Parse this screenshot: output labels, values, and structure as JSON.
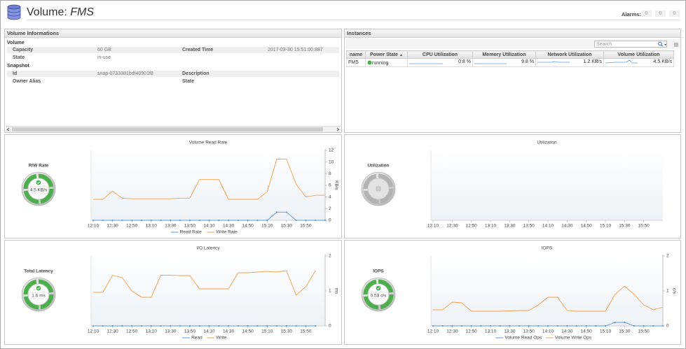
{
  "header": {
    "title_prefix": "Volume:",
    "title_name": "FMS",
    "alarms_label": "Alarms:",
    "alarm_counts": [
      0,
      0,
      0
    ]
  },
  "volume_info": {
    "title": "Volume Informations",
    "sections": [
      {
        "name": "Volume",
        "rows": [
          [
            {
              "label": "Capacity",
              "value": "60 GB"
            },
            {
              "label": "Created Time",
              "value": "2017-03-30 15:51:00.887"
            }
          ],
          [
            {
              "label": "State",
              "value": "in-use"
            }
          ]
        ]
      },
      {
        "name": "Snapshot",
        "rows": [
          [
            {
              "label": "Id",
              "value": "snap-0733381bdf40901f8"
            },
            {
              "label": "Description"
            }
          ],
          [
            {
              "label": "Owner Alias"
            },
            {
              "label": "State"
            }
          ]
        ]
      }
    ]
  },
  "instances": {
    "title": "Instances",
    "search_placeholder": "Search",
    "columns": [
      "name",
      "Power State",
      "CPU Utilization",
      "Memory Utilization",
      "Network Utilization",
      "Volume Utilization"
    ],
    "rows": [
      [
        "FMS",
        "running",
        "0.8 %",
        "9.8 %",
        "1.2 KB/s",
        "4.5 KB/s"
      ]
    ]
  },
  "chart_data": [
    {
      "type": "line",
      "title": "Volume Read Rate",
      "ylabel": "KB/s",
      "gauge": {
        "label": "R/W Rate",
        "value": "4.5 KB/s"
      },
      "categories": [
        "12:10",
        null,
        "12:30",
        null,
        "12:50",
        null,
        "13:10",
        null,
        "13:30",
        null,
        "13:50",
        null,
        "14:10",
        null,
        "14:30",
        null,
        "14:50",
        null,
        "15:10",
        null,
        "15:30",
        null,
        "15:50",
        null,
        null
      ],
      "ylim": [
        0,
        12
      ],
      "yticks": [
        0,
        2,
        4,
        6,
        8,
        10,
        12
      ],
      "series": [
        {
          "name": "Read Rate",
          "color": "#5b9bd5",
          "marker": true,
          "values": [
            0,
            0,
            0,
            0,
            0,
            0,
            0,
            0,
            0,
            0,
            0,
            0,
            0,
            0,
            0,
            0,
            0,
            0,
            0,
            1.4,
            1.4,
            0,
            0,
            0,
            0
          ]
        },
        {
          "name": "Write Rate",
          "color": "#f0a04b",
          "values": [
            3.6,
            3.6,
            5.0,
            3.8,
            3.7,
            3.7,
            3.7,
            3.7,
            3.7,
            3.8,
            3.8,
            7.0,
            7.0,
            7.0,
            3.6,
            3.6,
            3.6,
            3.6,
            4.9,
            10.5,
            10.5,
            6.2,
            4.0,
            4.3,
            4.3
          ]
        }
      ]
    },
    {
      "type": "line",
      "title": "Utilization",
      "gauge": {
        "label": "Utilization"
      },
      "categories": [
        "12:10",
        null,
        "12:30",
        null,
        "12:50",
        null,
        "13:10",
        null,
        "13:30",
        null,
        "13:50",
        null,
        "14:10",
        null,
        "14:30",
        null,
        "14:50",
        null,
        "15:10",
        null,
        "15:30",
        null,
        "15:50",
        null,
        null
      ]
    },
    {
      "type": "line",
      "title": "I/O Latency",
      "ylabel": "ms",
      "gauge": {
        "label": "Total Latency",
        "value": "1.6 ms"
      },
      "categories": [
        "12:10",
        null,
        "12:30",
        null,
        "12:50",
        null,
        "13:10",
        null,
        "13:30",
        null,
        "13:50",
        null,
        "14:10",
        null,
        "14:30",
        null,
        "14:50",
        null,
        "15:10",
        null,
        "15:30",
        null,
        "15:50",
        null,
        null
      ],
      "ylim": [
        0,
        2
      ],
      "yticks": [
        0,
        1,
        2
      ],
      "series": [
        {
          "name": "Read",
          "color": "#5b9bd5",
          "marker": true,
          "values": [
            0,
            0,
            0,
            0,
            0,
            0,
            0,
            0,
            0,
            0,
            0,
            0,
            0,
            0,
            0,
            0,
            0,
            0,
            0,
            0,
            0,
            0,
            0,
            0,
            null
          ]
        },
        {
          "name": "Write",
          "color": "#f0a04b",
          "values": [
            0.96,
            0.96,
            1.45,
            1.38,
            1.0,
            0.82,
            0.82,
            1.45,
            1.45,
            1.44,
            1.44,
            1.06,
            1.06,
            1.06,
            1.06,
            1.52,
            1.52,
            1.54,
            1.56,
            1.54,
            1.58,
            0.88,
            1.12,
            1.58,
            null
          ]
        }
      ]
    },
    {
      "type": "line",
      "title": "IOPS",
      "ylabel": "c/s",
      "gauge": {
        "label": "IOPS",
        "value": "0.53 c/s"
      },
      "categories": [
        "12:10",
        null,
        "12:30",
        null,
        "12:50",
        null,
        "13:10",
        null,
        "13:30",
        null,
        "13:50",
        null,
        "14:10",
        null,
        "14:30",
        null,
        "14:50",
        null,
        "15:10",
        null,
        "15:30",
        null,
        "15:50",
        null,
        null
      ],
      "ylim": [
        0,
        2
      ],
      "yticks": [
        0,
        1,
        2
      ],
      "series": [
        {
          "name": "Volume Read Ops",
          "color": "#5b9bd5",
          "marker": true,
          "values": [
            0,
            0,
            0,
            0,
            0,
            0,
            0,
            0,
            0,
            0,
            0,
            0,
            0,
            0,
            0,
            0,
            0,
            0,
            0,
            0.1,
            0.1,
            0,
            0,
            0,
            0
          ]
        },
        {
          "name": "Volume Write Ops",
          "color": "#f0a04b",
          "values": [
            0.46,
            0.46,
            0.68,
            0.66,
            0.42,
            0.42,
            0.42,
            0.42,
            0.43,
            0.44,
            0.44,
            0.6,
            0.82,
            0.82,
            0.44,
            0.42,
            0.42,
            0.42,
            0.42,
            0.9,
            1.14,
            0.9,
            0.6,
            0.46,
            0.54
          ]
        }
      ]
    }
  ]
}
